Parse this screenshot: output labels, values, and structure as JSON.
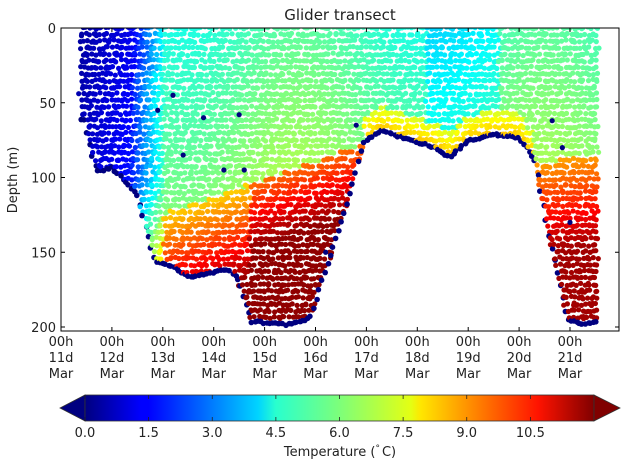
{
  "chart_data": {
    "type": "scatter",
    "title": "Glider transect",
    "xlabel": "",
    "ylabel": "Depth (m)",
    "ylim": [
      0,
      205
    ],
    "y_inverted": true,
    "y_ticks": [
      0,
      50,
      100,
      150,
      200
    ],
    "x_ticks": [
      {
        "line1": "00h",
        "line2": "11d",
        "line3": "Mar"
      },
      {
        "line1": "00h",
        "line2": "12d",
        "line3": "Mar"
      },
      {
        "line1": "00h",
        "line2": "13d",
        "line3": "Mar"
      },
      {
        "line1": "00h",
        "line2": "14d",
        "line3": "Mar"
      },
      {
        "line1": "00h",
        "line2": "15d",
        "line3": "Mar"
      },
      {
        "line1": "00h",
        "line2": "16d",
        "line3": "Mar"
      },
      {
        "line1": "00h",
        "line2": "17d",
        "line3": "Mar"
      },
      {
        "line1": "00h",
        "line2": "18d",
        "line3": "Mar"
      },
      {
        "line1": "00h",
        "line2": "19d",
        "line3": "Mar"
      },
      {
        "line1": "00h",
        "line2": "20d",
        "line3": "Mar"
      },
      {
        "line1": "00h",
        "line2": "21d",
        "line3": "Mar"
      }
    ],
    "x_range_days": [
      11.0,
      21.95
    ],
    "grid": false,
    "colormap": "jet",
    "colorbar": {
      "label": "Temperature (°C)",
      "label_html_main": "Temperature (",
      "label_deg": "°",
      "label_tail": "C)",
      "vmin": 0.0,
      "vmax": 12.0,
      "extend": "both",
      "orientation": "horizontal",
      "ticks": [
        "0.0",
        "1.5",
        "3.0",
        "4.5",
        "6.0",
        "7.5",
        "9.0",
        "10.5"
      ],
      "under_color": "#000080",
      "over_color": "#800000"
    },
    "data_coverage_days": [
      11.4,
      21.55
    ],
    "bottom_profile": [
      {
        "day": 11.45,
        "depth": 60
      },
      {
        "day": 11.7,
        "depth": 95
      },
      {
        "day": 12.0,
        "depth": 92
      },
      {
        "day": 12.5,
        "depth": 110
      },
      {
        "day": 12.85,
        "depth": 155
      },
      {
        "day": 13.2,
        "depth": 158
      },
      {
        "day": 13.5,
        "depth": 165
      },
      {
        "day": 13.9,
        "depth": 163
      },
      {
        "day": 14.3,
        "depth": 160
      },
      {
        "day": 14.5,
        "depth": 168
      },
      {
        "day": 14.75,
        "depth": 195
      },
      {
        "day": 15.4,
        "depth": 197
      },
      {
        "day": 15.9,
        "depth": 193
      },
      {
        "day": 16.2,
        "depth": 160
      },
      {
        "day": 16.6,
        "depth": 120
      },
      {
        "day": 16.95,
        "depth": 75
      },
      {
        "day": 17.3,
        "depth": 67
      },
      {
        "day": 17.8,
        "depth": 73
      },
      {
        "day": 18.3,
        "depth": 78
      },
      {
        "day": 18.65,
        "depth": 85
      },
      {
        "day": 19.0,
        "depth": 74
      },
      {
        "day": 19.5,
        "depth": 70
      },
      {
        "day": 20.0,
        "depth": 72
      },
      {
        "day": 20.3,
        "depth": 86
      },
      {
        "day": 20.6,
        "depth": 140
      },
      {
        "day": 20.95,
        "depth": 193
      },
      {
        "day": 21.2,
        "depth": 197
      },
      {
        "day": 21.5,
        "depth": 195
      }
    ],
    "temperature_zones": [
      {
        "region": "11d-12.5d surface-to-bottom",
        "temp_range": [
          0.2,
          1.8
        ]
      },
      {
        "region": "12.5d-13.5d upper",
        "temp_range": [
          2.5,
          5.5
        ]
      },
      {
        "region": "13d-20.5d upper layer 0-60m",
        "temp_range": [
          4.5,
          7.0
        ]
      },
      {
        "region": "13d-16.8d deep layer 100-195m",
        "temp_range": [
          8.5,
          11.8
        ]
      },
      {
        "region": "17d-20d above seabed 60-75m",
        "temp_range": [
          6.5,
          8.0
        ]
      },
      {
        "region": "20.5d-21.5d deep 90-195m",
        "temp_range": [
          9.0,
          11.5
        ]
      }
    ]
  }
}
